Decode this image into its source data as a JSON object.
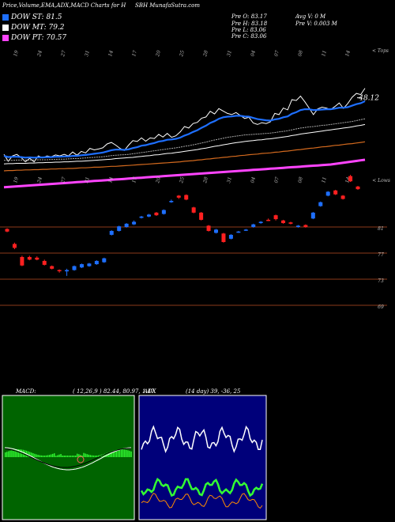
{
  "header": {
    "title": "Price,Volume,EMA,ADX,MACD Charts for H",
    "site": "SBH MunafaSutra.com",
    "prev_open": "Pre   O: 83.17",
    "prev_high": "Pre   H: 83.18",
    "prev_low": "Pre   L: 83.06",
    "prev_close": "Pre   C: 83.06",
    "avg_volume": "Avg V: 0   M",
    "prev_volume": "Pre   V: 0.003 M"
  },
  "dow": [
    {
      "label": "DOW ST: 81.5",
      "color": "#1e6fff"
    },
    {
      "label": "DOW MT: 79.2",
      "color": "#ffffff"
    },
    {
      "label": "DOW PT: 70.57",
      "color": "#ff44ff"
    }
  ],
  "price_panel": {
    "top_label": "< Tops",
    "last_price_label": "48.12",
    "top_date_labels": [
      "19",
      "24",
      "27",
      "31",
      "14",
      "17",
      "20",
      "25",
      "28",
      "31",
      "04",
      "07",
      "08",
      "11",
      "14"
    ],
    "chart_data": {
      "type": "line",
      "series": [
        {
          "color": "#ffffff",
          "values": [
            89.5,
            87.2,
            89.0,
            89.5,
            88.4,
            87.0,
            88.2,
            87.0,
            89.0,
            88.3,
            89.0,
            88.7,
            89.3,
            89.0,
            89.5,
            89.0,
            90.3,
            89.2,
            90.5,
            90.0,
            91.5,
            91.0,
            91.3,
            91.7,
            93.0,
            93.5,
            92.6,
            91.5,
            90.8,
            92.6,
            94.1,
            93.8,
            95.0,
            93.9,
            95.0,
            94.8,
            96.2,
            95.3,
            96.5,
            95.2,
            95.7,
            97.0,
            98.8,
            98.3,
            99.8,
            100.2,
            101.6,
            102.0,
            103.9,
            103.0,
            104.8,
            104.0,
            103.2,
            102.8,
            103.5,
            102.5,
            101.5,
            101.9,
            100.0,
            99.5,
            100.1,
            99.8,
            100.4,
            103.2,
            102.8,
            105.0,
            104.4,
            107.8,
            107.5,
            109.0,
            107.1,
            105.0,
            102.8,
            104.7,
            105.3,
            105.0,
            104.5,
            105.5,
            106.7,
            104.9,
            106.5,
            108.6,
            109.9,
            109.5,
            111.6
          ]
        },
        {
          "color": "#1e6fff",
          "values": [
            89.0,
            88.6,
            88.7,
            88.7,
            88.6,
            88.4,
            88.5,
            88.4,
            88.5,
            88.5,
            88.6,
            88.6,
            88.7,
            88.7,
            88.8,
            88.8,
            89.0,
            89.0,
            89.2,
            89.3,
            89.5,
            89.7,
            89.9,
            90.1,
            90.5,
            90.9,
            91.1,
            91.1,
            91.0,
            91.2,
            91.6,
            91.9,
            92.4,
            92.6,
            93.0,
            93.3,
            93.8,
            94.0,
            94.4,
            94.5,
            94.7,
            95.1,
            95.8,
            96.3,
            97.0,
            97.6,
            98.4,
            99.1,
            100.0,
            100.6,
            101.4,
            101.9,
            102.1,
            102.2,
            102.4,
            102.4,
            102.2,
            102.1,
            101.7,
            101.3,
            101.1,
            100.9,
            100.8,
            101.2,
            101.4,
            101.9,
            102.2,
            103.1,
            103.6,
            104.3,
            104.6,
            104.6,
            104.3,
            104.4,
            104.5,
            104.6,
            104.6,
            104.8,
            105.1,
            105.1,
            105.3,
            105.8,
            106.3,
            106.6,
            107.3
          ]
        },
        {
          "color": "#aaaaaa",
          "values": [
            87.5,
            87.5,
            87.5,
            87.6,
            87.6,
            87.6,
            87.6,
            87.6,
            87.7,
            87.7,
            87.7,
            87.8,
            87.8,
            87.9,
            87.9,
            88.0,
            88.1,
            88.1,
            88.2,
            88.3,
            88.4,
            88.5,
            88.6,
            88.7,
            88.9,
            89.1,
            89.2,
            89.3,
            89.4,
            89.5,
            89.7,
            89.9,
            90.1,
            90.3,
            90.5,
            90.7,
            90.9,
            91.1,
            91.3,
            91.5,
            91.7,
            91.9,
            92.2,
            92.4,
            92.7,
            93.0,
            93.3,
            93.6,
            94.0,
            94.3,
            94.6,
            94.9,
            95.2,
            95.4,
            95.6,
            95.8,
            96.0,
            96.1,
            96.2,
            96.3,
            96.4,
            96.5,
            96.6,
            96.8,
            97.0,
            97.2,
            97.4,
            97.7,
            98.0,
            98.3,
            98.5,
            98.7,
            98.8,
            99.0,
            99.2,
            99.3,
            99.5,
            99.7,
            99.9,
            100.1,
            100.3,
            100.5,
            100.8,
            101.1,
            101.4
          ]
        },
        {
          "color": "#ffffff",
          "values": [
            86.3,
            86.4,
            86.4,
            86.5,
            86.5,
            86.5,
            86.6,
            86.6,
            86.7,
            86.7,
            86.8,
            86.8,
            86.9,
            86.9,
            87.0,
            87.0,
            87.1,
            87.2,
            87.2,
            87.3,
            87.4,
            87.5,
            87.6,
            87.7,
            87.8,
            87.9,
            88.1,
            88.2,
            88.3,
            88.4,
            88.5,
            88.7,
            88.8,
            89.0,
            89.1,
            89.3,
            89.4,
            89.6,
            89.8,
            89.9,
            90.1,
            90.3,
            90.5,
            90.7,
            90.9,
            91.1,
            91.4,
            91.6,
            91.9,
            92.2,
            92.4,
            92.7,
            92.9,
            93.2,
            93.4,
            93.6,
            93.8,
            94.0,
            94.1,
            94.3,
            94.4,
            94.6,
            94.7,
            94.9,
            95.1,
            95.3,
            95.5,
            95.8,
            96.0,
            96.3,
            96.5,
            96.7,
            96.9,
            97.1,
            97.3,
            97.5,
            97.7,
            97.9,
            98.1,
            98.3,
            98.5,
            98.7,
            99.0,
            99.2,
            99.5
          ]
        },
        {
          "color": "#d2691e",
          "values": [
            84.0,
            84.1,
            84.1,
            84.2,
            84.2,
            84.3,
            84.3,
            84.4,
            84.4,
            84.5,
            84.5,
            84.6,
            84.6,
            84.7,
            84.7,
            84.8,
            84.8,
            84.9,
            85.0,
            85.0,
            85.1,
            85.2,
            85.2,
            85.3,
            85.4,
            85.5,
            85.5,
            85.6,
            85.7,
            85.8,
            85.9,
            86.0,
            86.1,
            86.2,
            86.3,
            86.4,
            86.5,
            86.6,
            86.7,
            86.8,
            86.9,
            87.0,
            87.2,
            87.3,
            87.4,
            87.6,
            87.7,
            87.9,
            88.0,
            88.2,
            88.3,
            88.5,
            88.6,
            88.8,
            88.9,
            89.1,
            89.2,
            89.4,
            89.5,
            89.6,
            89.8,
            89.9,
            90.0,
            90.2,
            90.3,
            90.5,
            90.6,
            90.8,
            91.0,
            91.1,
            91.3,
            91.5,
            91.6,
            91.8,
            92.0,
            92.1,
            92.3,
            92.5,
            92.6,
            92.8,
            93.0,
            93.1,
            93.3,
            93.5,
            93.7
          ]
        },
        {
          "color": "#ff44ff",
          "values": [
            78.5,
            78.6,
            78.7,
            78.8,
            78.9,
            79.0,
            79.1,
            79.2,
            79.3,
            79.4,
            79.5,
            79.6,
            79.7,
            79.8,
            79.9,
            80.0,
            80.1,
            80.2,
            80.3,
            80.4,
            80.5,
            80.6,
            80.7,
            80.8,
            80.9,
            81.0,
            81.1,
            81.2,
            81.3,
            81.4,
            81.5,
            81.6,
            81.7,
            81.8,
            81.9,
            82.0,
            82.1,
            82.2,
            82.3,
            82.4,
            82.5,
            82.6,
            82.7,
            82.8,
            82.9,
            83.0,
            83.1,
            83.2,
            83.3,
            83.4,
            83.5,
            83.6,
            83.7,
            83.8,
            83.9,
            84.0,
            84.1,
            84.2,
            84.3,
            84.4,
            84.5,
            84.6,
            84.7,
            84.8,
            84.9,
            85.0,
            85.1,
            85.2,
            85.3,
            85.4,
            85.5,
            85.6,
            85.7,
            85.8,
            85.9,
            86.0,
            86.1,
            86.3,
            86.5,
            86.7,
            86.9,
            87.1,
            87.3,
            87.5,
            87.7
          ]
        }
      ],
      "ylim": [
        75,
        116
      ]
    }
  },
  "lows_panel": {
    "low_label": "< Lows",
    "bottom_date_labels": [
      "19",
      "24",
      "27",
      "31",
      "14",
      "17",
      "20",
      "25",
      "28",
      "31",
      "04",
      "07",
      "08",
      "11",
      "14"
    ],
    "level_labels": [
      "81",
      "77",
      "73",
      "69"
    ],
    "chart_data": {
      "type": "candlestick",
      "candles": [
        {
          "open": 80.7,
          "close": 80.3,
          "high": 80.8,
          "low": 80.2
        },
        {
          "open": 78.4,
          "close": 77.8,
          "high": 78.6,
          "low": 77.6
        },
        {
          "open": 76.4,
          "close": 75.1,
          "high": 76.6,
          "low": 75.0
        },
        {
          "open": 76.4,
          "close": 76.0,
          "high": 76.6,
          "low": 75.9
        },
        {
          "open": 76.3,
          "close": 76.0,
          "high": 76.5,
          "low": 75.9
        },
        {
          "open": 75.8,
          "close": 75.2,
          "high": 76.0,
          "low": 75.1
        },
        {
          "open": 75.0,
          "close": 74.6,
          "high": 75.1,
          "low": 74.5
        },
        {
          "open": 74.4,
          "close": 74.3,
          "high": 74.5,
          "low": 74.0
        },
        {
          "open": 74.2,
          "close": 74.4,
          "high": 74.6,
          "low": 73.5
        },
        {
          "open": 74.4,
          "close": 75.0,
          "high": 75.1,
          "low": 74.3
        },
        {
          "open": 74.8,
          "close": 75.3,
          "high": 75.4,
          "low": 74.7
        },
        {
          "open": 75.0,
          "close": 75.4,
          "high": 75.5,
          "low": 74.9
        },
        {
          "open": 75.3,
          "close": 75.8,
          "high": 75.9,
          "low": 75.2
        },
        {
          "open": 75.6,
          "close": 76.2,
          "high": 76.3,
          "low": 75.5
        },
        {
          "open": 79.8,
          "close": 80.4,
          "high": 80.5,
          "low": 79.7
        },
        {
          "open": 80.4,
          "close": 81.1,
          "high": 81.2,
          "low": 80.3
        },
        {
          "open": 81.0,
          "close": 81.5,
          "high": 81.6,
          "low": 80.9
        },
        {
          "open": 81.4,
          "close": 81.8,
          "high": 82.0,
          "low": 81.3
        },
        {
          "open": 82.4,
          "close": 82.6,
          "high": 82.7,
          "low": 82.3
        },
        {
          "open": 82.6,
          "close": 82.9,
          "high": 83.0,
          "low": 82.5
        },
        {
          "open": 83.2,
          "close": 82.8,
          "high": 83.3,
          "low": 82.7
        },
        {
          "open": 83.0,
          "close": 83.6,
          "high": 83.7,
          "low": 82.9
        },
        {
          "open": 84.8,
          "close": 85.0,
          "high": 85.2,
          "low": 84.7
        },
        {
          "open": 85.8,
          "close": 85.5,
          "high": 85.9,
          "low": 85.3
        },
        {
          "open": 85.9,
          "close": 85.2,
          "high": 86.0,
          "low": 85.1
        },
        {
          "open": 84.0,
          "close": 83.2,
          "high": 84.1,
          "low": 83.1
        },
        {
          "open": 83.2,
          "close": 82.1,
          "high": 83.3,
          "low": 82.0
        },
        {
          "open": 81.2,
          "close": 80.4,
          "high": 81.3,
          "low": 80.3
        },
        {
          "open": 80.1,
          "close": 80.6,
          "high": 80.7,
          "low": 80.0
        },
        {
          "open": 80.0,
          "close": 78.7,
          "high": 80.1,
          "low": 78.6
        },
        {
          "open": 79.2,
          "close": 79.8,
          "high": 79.9,
          "low": 79.1
        },
        {
          "open": 80.2,
          "close": 80.3,
          "high": 80.4,
          "low": 80.1
        },
        {
          "open": 80.5,
          "close": 80.6,
          "high": 80.7,
          "low": 80.4
        },
        {
          "open": 81.0,
          "close": 81.4,
          "high": 81.5,
          "low": 80.9
        },
        {
          "open": 81.6,
          "close": 81.8,
          "high": 81.9,
          "low": 81.5
        },
        {
          "open": 82.1,
          "close": 82.0,
          "high": 82.3,
          "low": 81.9
        },
        {
          "open": 82.8,
          "close": 82.2,
          "high": 82.9,
          "low": 82.0
        },
        {
          "open": 82.0,
          "close": 81.6,
          "high": 82.1,
          "low": 81.5
        },
        {
          "open": 81.7,
          "close": 81.5,
          "high": 81.8,
          "low": 81.4
        },
        {
          "open": 81.0,
          "close": 81.2,
          "high": 81.3,
          "low": 80.9
        },
        {
          "open": 81.3,
          "close": 81.0,
          "high": 81.4,
          "low": 80.9
        },
        {
          "open": 82.3,
          "close": 83.2,
          "high": 83.3,
          "low": 82.2
        },
        {
          "open": 84.2,
          "close": 84.8,
          "high": 84.9,
          "low": 84.1
        },
        {
          "open": 85.8,
          "close": 86.4,
          "high": 86.5,
          "low": 85.7
        },
        {
          "open": 86.6,
          "close": 86.0,
          "high": 86.7,
          "low": 85.9
        },
        {
          "open": 85.8,
          "close": 85.3,
          "high": 85.9,
          "low": 85.2
        },
        {
          "open": 88.8,
          "close": 88.0,
          "high": 89.0,
          "low": 87.9
        },
        {
          "open": 87.2,
          "close": 86.8,
          "high": 87.3,
          "low": 86.7
        }
      ]
    }
  },
  "macd_panel": {
    "title": "MACD:",
    "params": "( 12,26,9 ) 82.44,  80.97,  1.47"
  },
  "adx_panel": {
    "title": "ADX",
    "params": "(14 day) 39,  -36,  25"
  },
  "colors": {
    "background": "#000000",
    "macd_bg": "#006400",
    "macd_hist": "#33ff33",
    "adx_bg": "#00007a",
    "adx_green": "#33ff33",
    "adx_orange": "#ff8c00",
    "candle_up": "#1e6fff",
    "candle_down": "#ff2020",
    "level_line": "#8b3a1a"
  }
}
